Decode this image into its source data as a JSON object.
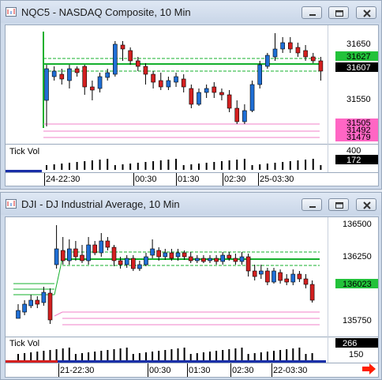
{
  "windows": [
    {
      "title": "NQC5 - NASDAQ Composite, 10 Min",
      "price_labels": [
        "31650",
        "31550"
      ],
      "volume_label": "Tick Vol",
      "volume_axis_label": "400",
      "volume_value": "172",
      "time_labels": [
        "24-22:30",
        "00:30",
        "01:30",
        "02:30",
        "25-03:30"
      ],
      "markers": [
        {
          "text": "31627",
          "color": "#22c23a",
          "text_color": "#000000",
          "value": 31627
        },
        {
          "text": "31607",
          "color": "#000000",
          "text_color": "#ffffff",
          "value": 31607
        },
        {
          "text": "31505",
          "color": "#ff66c4",
          "text_color": "#000000",
          "value": 31505
        },
        {
          "text": "31492",
          "color": "#ff66c4",
          "text_color": "#000000",
          "value": 31492
        },
        {
          "text": "31479",
          "color": "#ff66c4",
          "text_color": "#000000",
          "value": 31479
        }
      ]
    },
    {
      "title": "DJI - DJ Industrial Average, 10 Min",
      "price_labels": [
        "136500",
        "136250",
        "135750"
      ],
      "volume_label": "Tick Vol",
      "volume_axis_label": "150",
      "volume_value": "266",
      "time_labels": [
        "21-22:30",
        "00:30",
        "01:30",
        "02:30",
        "22-03:30"
      ],
      "markers": [
        {
          "text": "136023",
          "color": "#22c23a",
          "text_color": "#000000",
          "value": 136023
        }
      ]
    }
  ],
  "colors": {
    "up": "#1f6fd6",
    "down": "#d42020",
    "support": "#16b02e",
    "pink": "#f080c8",
    "accent_arrow": "#ff1e00"
  },
  "icons": {
    "window": "chart-window-icon",
    "minimize": "minimize-icon",
    "restore": "restore-icon",
    "close": "close-icon",
    "arrow": "right-arrow-icon"
  }
}
